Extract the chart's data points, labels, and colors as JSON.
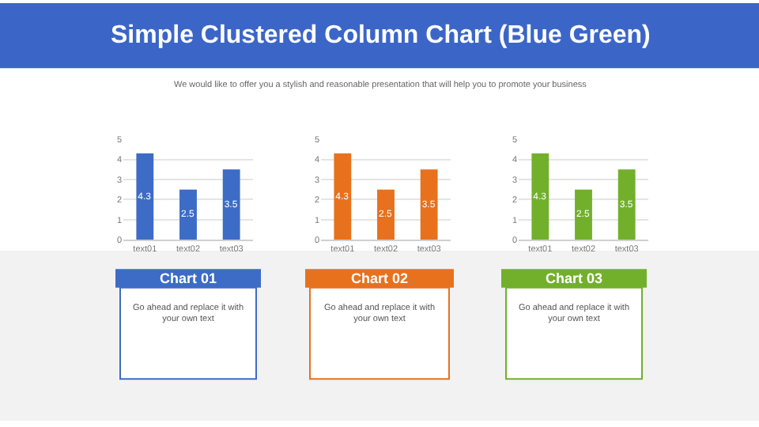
{
  "chart_data": [
    {
      "type": "other",
      "title": "Simple Clustered Column Chart (Blue Green)",
      "subtitle": "We would like to offer you a stylish and reasonable presentation that will help you to promote your business"
    },
    {
      "type": "bar",
      "title": "Chart 01",
      "annotations": [
        "Go ahead and replace it with your own text"
      ],
      "categories": [
        "text01",
        "text02",
        "text03"
      ],
      "values": [
        4.3,
        2.5,
        3.5
      ],
      "color": "#3d6cc6",
      "ylim": [
        0,
        5
      ],
      "yticks": [
        0,
        1,
        2,
        3,
        4,
        5
      ],
      "grid": "y",
      "data_labels": true
    },
    {
      "type": "bar",
      "title": "Chart 02",
      "annotations": [
        "Go ahead and replace it with your own text"
      ],
      "categories": [
        "text01",
        "text02",
        "text03"
      ],
      "values": [
        4.3,
        2.5,
        3.5
      ],
      "color": "#e8711e",
      "ylim": [
        0,
        5
      ],
      "yticks": [
        0,
        1,
        2,
        3,
        4,
        5
      ],
      "grid": "y",
      "data_labels": true
    },
    {
      "type": "bar",
      "title": "Chart 03",
      "annotations": [
        "Go ahead and replace it with your own text"
      ],
      "categories": [
        "text01",
        "text02",
        "text03"
      ],
      "values": [
        4.3,
        2.5,
        3.5
      ],
      "color": "#72b02c",
      "ylim": [
        0,
        5
      ],
      "yticks": [
        0,
        1,
        2,
        3,
        4,
        5
      ],
      "grid": "y",
      "data_labels": true
    }
  ]
}
